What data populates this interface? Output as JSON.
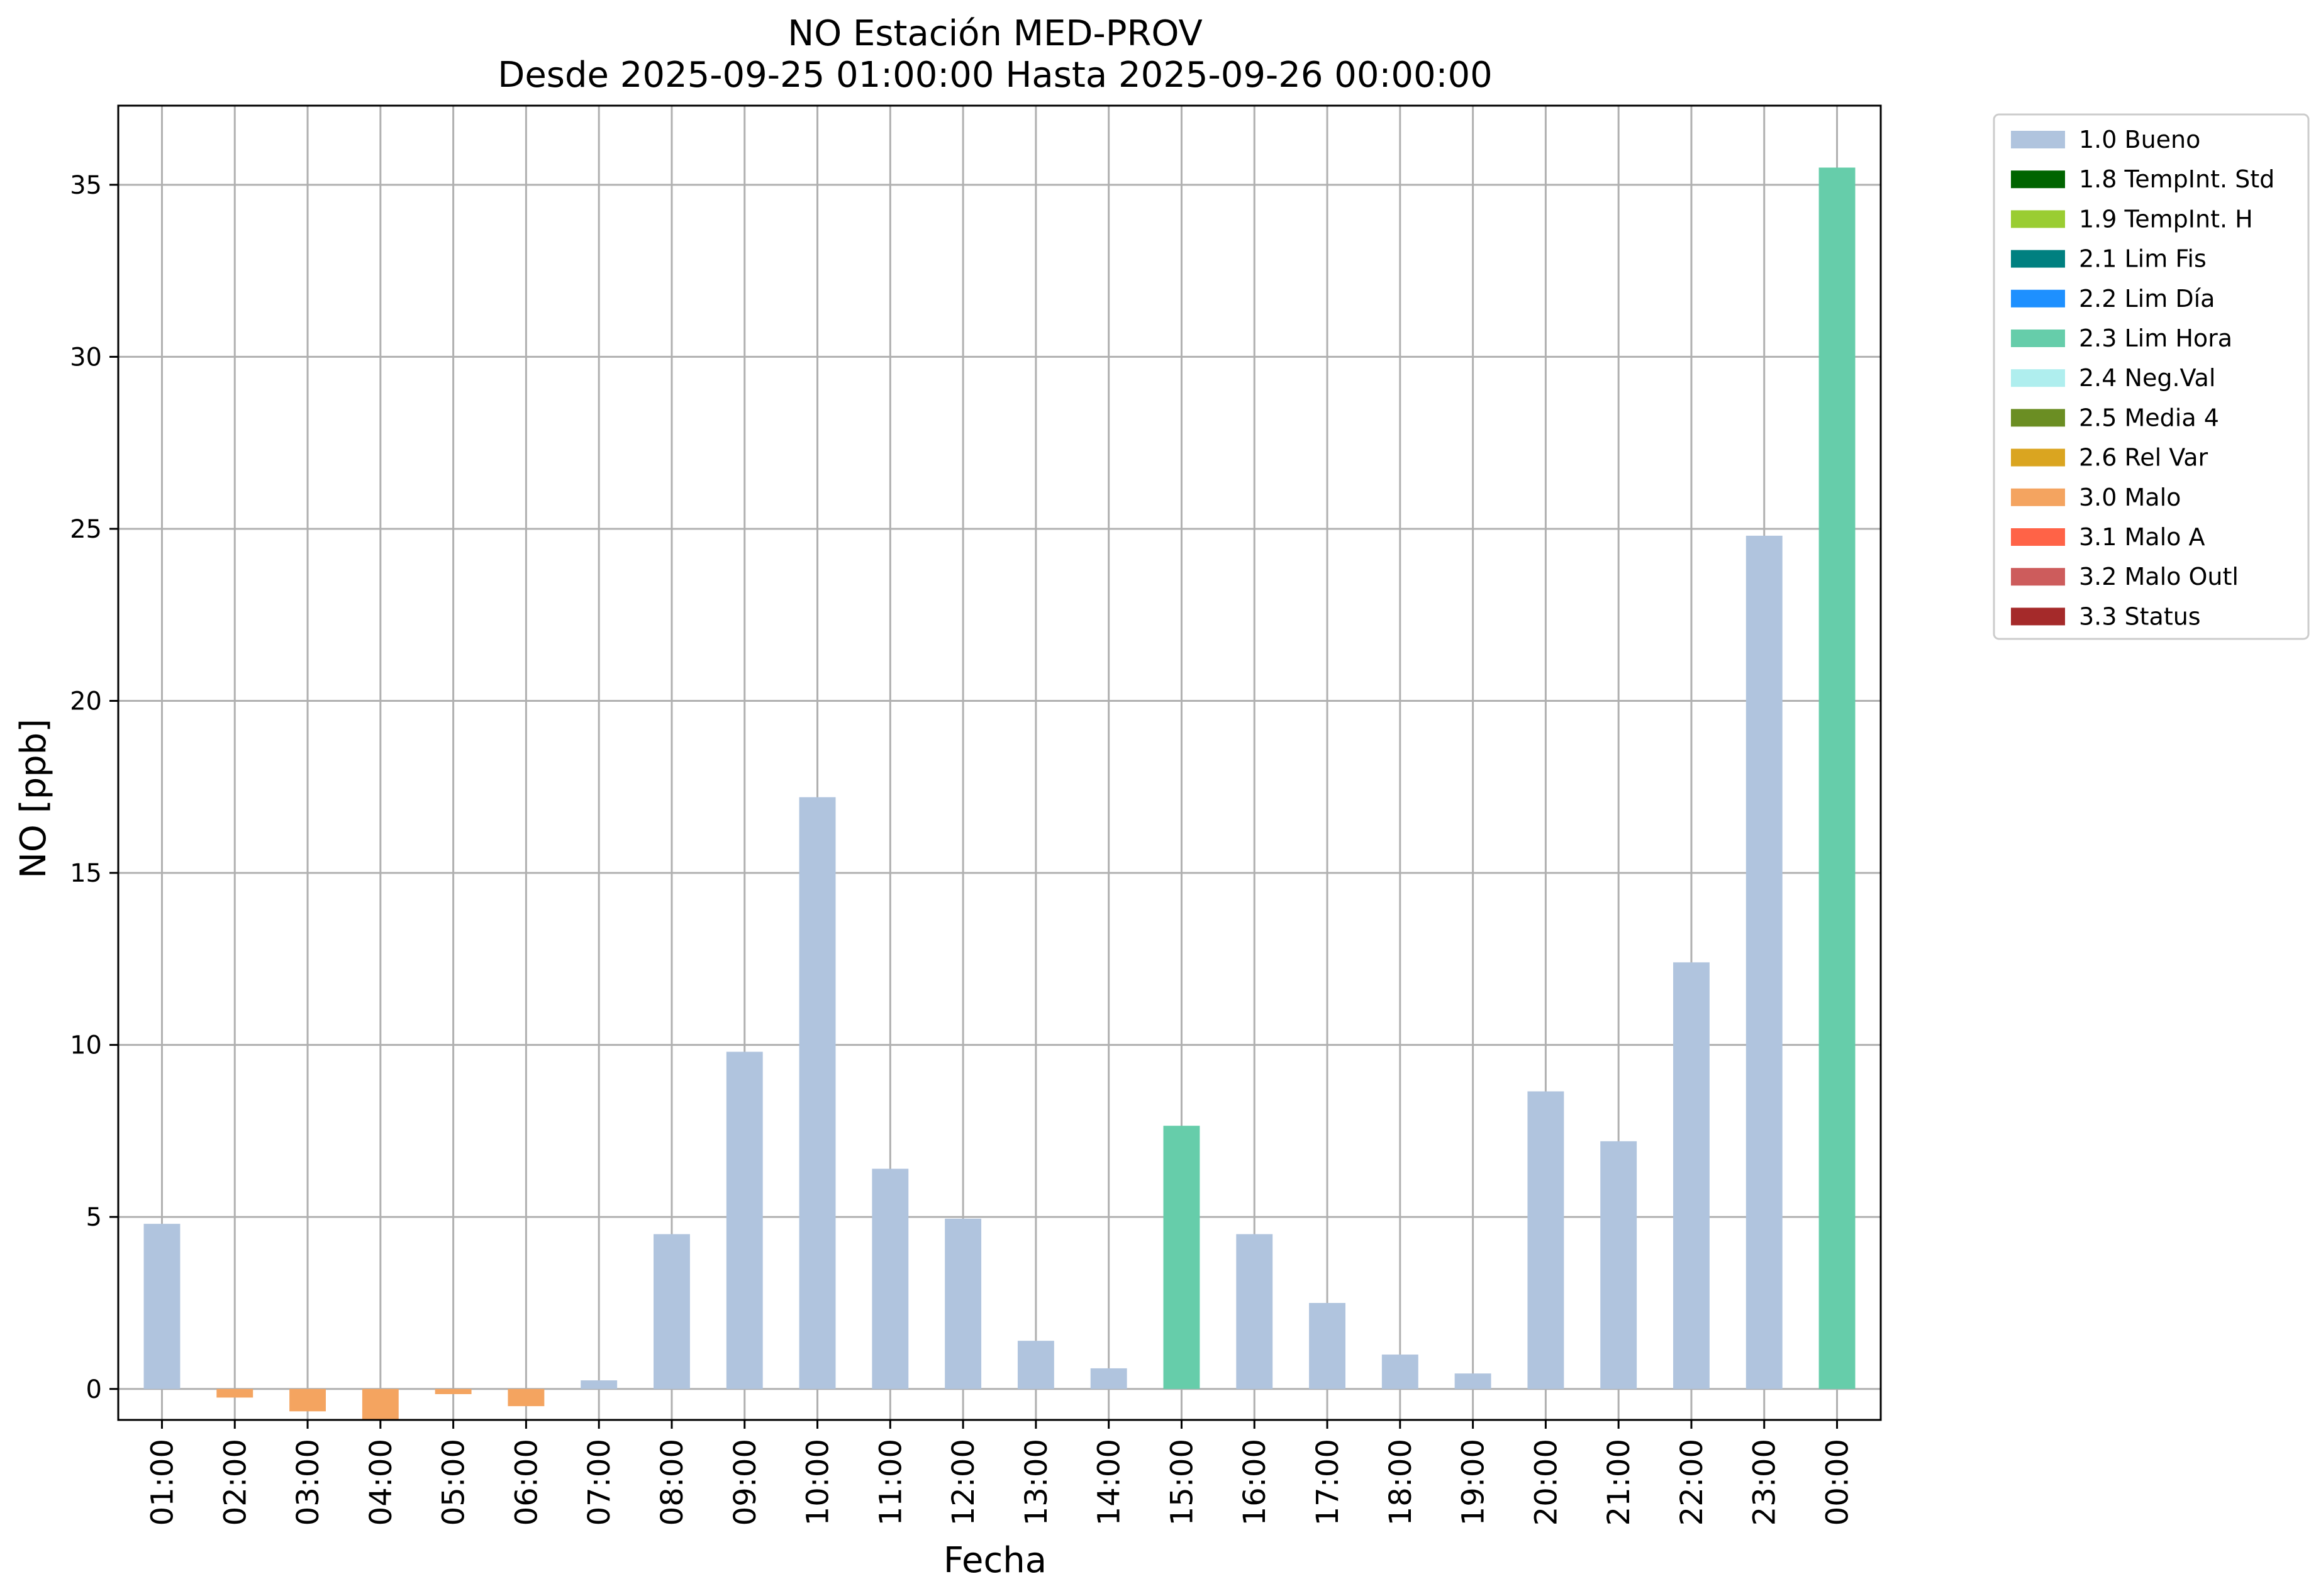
{
  "chart_data": {
    "type": "bar",
    "title": "NO Estación MED-PROV",
    "subtitle": "Desde 2025-09-25 01:00:00 Hasta 2025-09-26 00:00:00",
    "xlabel": "Fecha",
    "ylabel": "NO [ppb]",
    "ylim": [
      -0.9,
      37.3
    ],
    "yticks": [
      0,
      5,
      10,
      15,
      20,
      25,
      30,
      35
    ],
    "grid": true,
    "legend_position": "outside-upper-right",
    "categories": [
      "01:00",
      "02:00",
      "03:00",
      "04:00",
      "05:00",
      "06:00",
      "07:00",
      "08:00",
      "09:00",
      "10:00",
      "11:00",
      "12:00",
      "13:00",
      "14:00",
      "15:00",
      "16:00",
      "17:00",
      "18:00",
      "19:00",
      "20:00",
      "21:00",
      "22:00",
      "23:00",
      "00:00"
    ],
    "values": [
      4.8,
      -0.25,
      -0.65,
      -0.9,
      -0.15,
      -0.5,
      0.25,
      4.5,
      9.8,
      17.2,
      6.4,
      4.95,
      1.4,
      0.6,
      7.65,
      4.5,
      2.5,
      1.0,
      0.45,
      8.65,
      7.2,
      12.4,
      24.8,
      35.5
    ],
    "flags": [
      "1.0 Bueno",
      "3.0 Malo",
      "3.0 Malo",
      "3.0 Malo",
      "3.0 Malo",
      "3.0 Malo",
      "1.0 Bueno",
      "1.0 Bueno",
      "1.0 Bueno",
      "1.0 Bueno",
      "1.0 Bueno",
      "1.0 Bueno",
      "1.0 Bueno",
      "1.0 Bueno",
      "2.3 Lim Hora",
      "1.0 Bueno",
      "1.0 Bueno",
      "1.0 Bueno",
      "1.0 Bueno",
      "1.0 Bueno",
      "1.0 Bueno",
      "1.0 Bueno",
      "1.0 Bueno",
      "2.3 Lim Hora"
    ],
    "legend": [
      {
        "label": "1.0 Bueno",
        "color": "#b0c4de"
      },
      {
        "label": "1.8 TempInt. Std",
        "color": "#006400"
      },
      {
        "label": "1.9 TempInt. H",
        "color": "#9acd32"
      },
      {
        "label": "2.1 Lim Fis",
        "color": "#008080"
      },
      {
        "label": "2.2 Lim Día",
        "color": "#1e90ff"
      },
      {
        "label": "2.3 Lim Hora",
        "color": "#66cdaa"
      },
      {
        "label": "2.4 Neg.Val",
        "color": "#afeeee"
      },
      {
        "label": "2.5 Media 4",
        "color": "#6b8e23"
      },
      {
        "label": "2.6 Rel Var",
        "color": "#daa520"
      },
      {
        "label": "3.0 Malo",
        "color": "#f4a460"
      },
      {
        "label": "3.1 Malo A",
        "color": "#ff6347"
      },
      {
        "label": "3.2 Malo Outl",
        "color": "#cd5c5c"
      },
      {
        "label": "3.3 Status",
        "color": "#a52a2a"
      }
    ]
  }
}
